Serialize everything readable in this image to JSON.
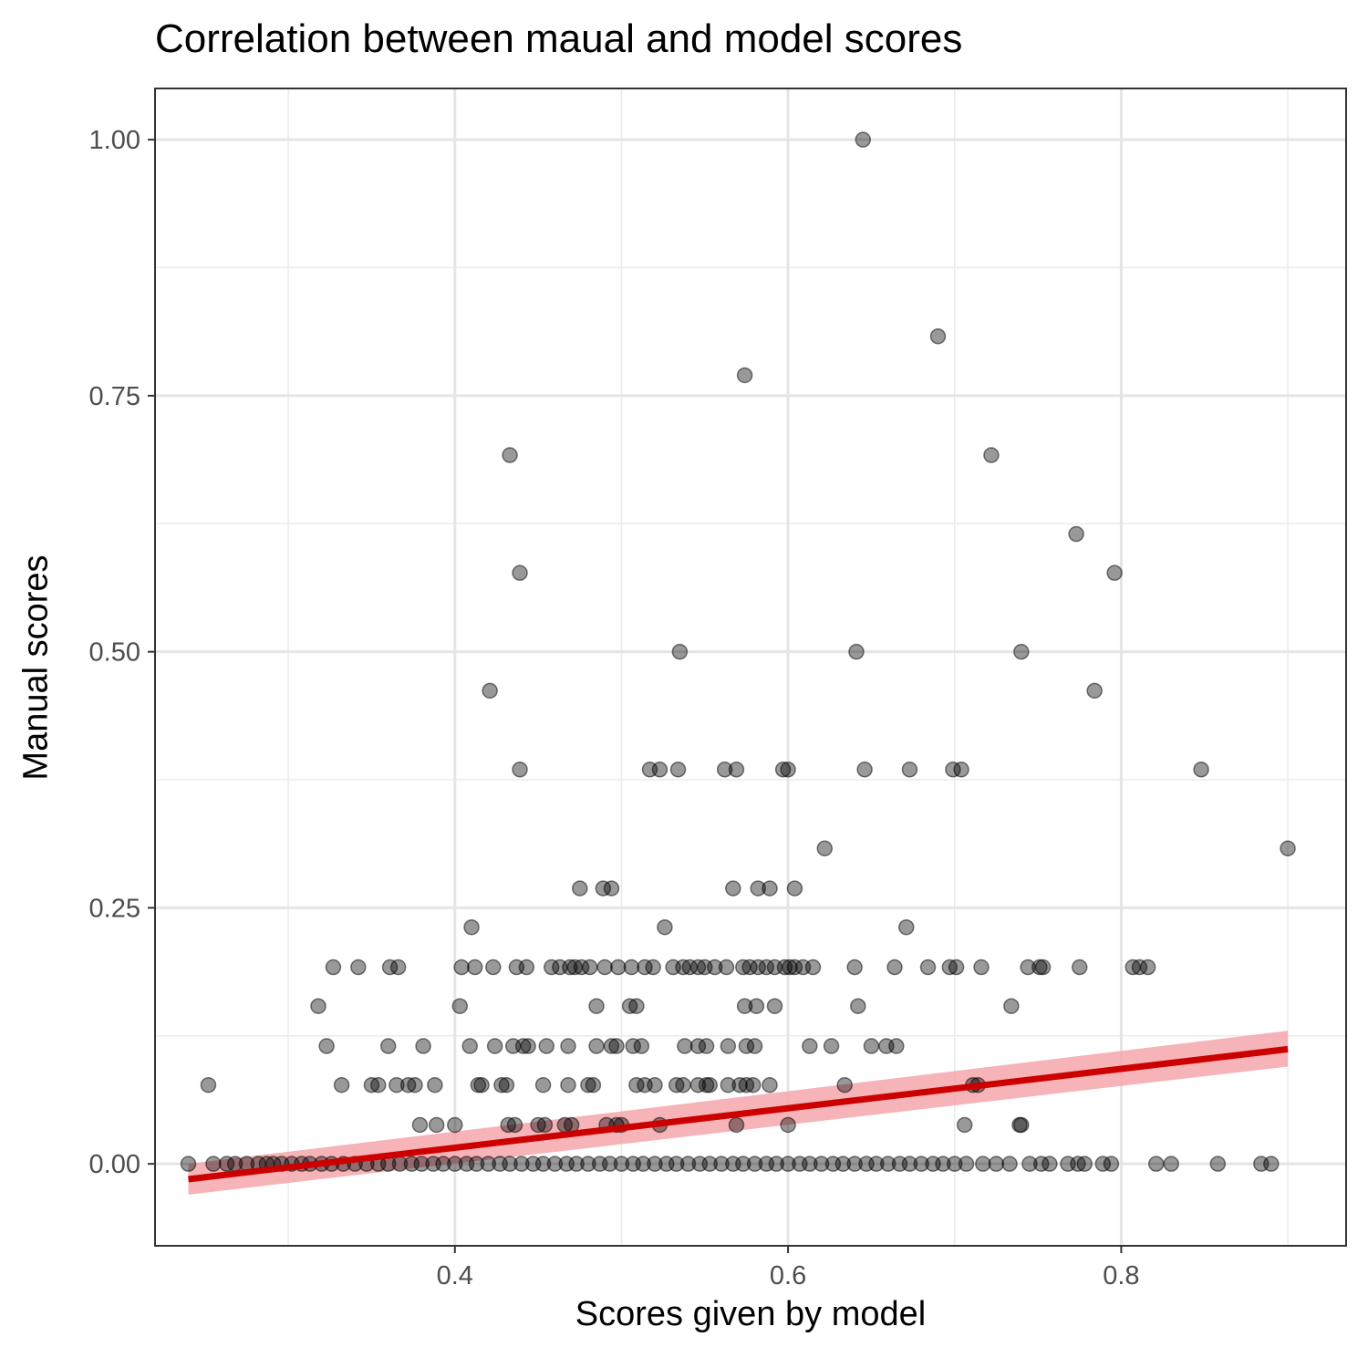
{
  "chart_data": {
    "type": "scatter",
    "title": "Correlation between maual and model scores",
    "xlabel": "Scores given by model",
    "ylabel": "Manual scores",
    "xlim": [
      0.22,
      0.935
    ],
    "ylim": [
      -0.08,
      1.05
    ],
    "x_ticks": [
      0.4,
      0.6,
      0.8
    ],
    "x_tick_labels": [
      "0.4",
      "0.6",
      "0.8"
    ],
    "y_ticks": [
      0,
      0.25,
      0.5,
      0.75,
      1.0
    ],
    "y_tick_labels": [
      "0.00",
      "0.25",
      "0.50",
      "0.75",
      "1.00"
    ],
    "grid": true,
    "point_color": "#000000",
    "point_alpha": 0.4,
    "fit_line": {
      "method": "linear",
      "x": [
        0.24,
        0.9
      ],
      "y": [
        -0.015,
        0.112
      ],
      "ci_lower": [
        -0.03,
        0.095
      ],
      "ci_upper": [
        0.0,
        0.13
      ],
      "color": "#cc0000",
      "ci_color": "#f4a6ab"
    },
    "series": [
      {
        "points": [
          [
            0.645,
            1.0
          ],
          [
            0.69,
            0.808
          ],
          [
            0.574,
            0.77
          ],
          [
            0.433,
            0.692
          ],
          [
            0.722,
            0.692
          ],
          [
            0.773,
            0.615
          ],
          [
            0.439,
            0.577
          ],
          [
            0.796,
            0.577
          ],
          [
            0.535,
            0.5
          ],
          [
            0.641,
            0.5
          ],
          [
            0.74,
            0.5
          ],
          [
            0.421,
            0.462
          ],
          [
            0.784,
            0.462
          ],
          [
            0.439,
            0.385
          ],
          [
            0.517,
            0.385
          ],
          [
            0.523,
            0.385
          ],
          [
            0.534,
            0.385
          ],
          [
            0.562,
            0.385
          ],
          [
            0.569,
            0.385
          ],
          [
            0.597,
            0.385
          ],
          [
            0.6,
            0.385
          ],
          [
            0.646,
            0.385
          ],
          [
            0.673,
            0.385
          ],
          [
            0.699,
            0.385
          ],
          [
            0.704,
            0.385
          ],
          [
            0.848,
            0.385
          ],
          [
            0.622,
            0.308
          ],
          [
            0.9,
            0.308
          ],
          [
            0.475,
            0.269
          ],
          [
            0.489,
            0.269
          ],
          [
            0.494,
            0.269
          ],
          [
            0.567,
            0.269
          ],
          [
            0.582,
            0.269
          ],
          [
            0.589,
            0.269
          ],
          [
            0.604,
            0.269
          ],
          [
            0.41,
            0.231
          ],
          [
            0.526,
            0.231
          ],
          [
            0.671,
            0.231
          ],
          [
            0.327,
            0.192
          ],
          [
            0.342,
            0.192
          ],
          [
            0.361,
            0.192
          ],
          [
            0.366,
            0.192
          ],
          [
            0.404,
            0.192
          ],
          [
            0.412,
            0.192
          ],
          [
            0.423,
            0.192
          ],
          [
            0.437,
            0.192
          ],
          [
            0.443,
            0.192
          ],
          [
            0.458,
            0.192
          ],
          [
            0.463,
            0.192
          ],
          [
            0.469,
            0.192
          ],
          [
            0.472,
            0.192
          ],
          [
            0.476,
            0.192
          ],
          [
            0.481,
            0.192
          ],
          [
            0.49,
            0.192
          ],
          [
            0.498,
            0.192
          ],
          [
            0.506,
            0.192
          ],
          [
            0.514,
            0.192
          ],
          [
            0.519,
            0.192
          ],
          [
            0.531,
            0.192
          ],
          [
            0.537,
            0.192
          ],
          [
            0.541,
            0.192
          ],
          [
            0.546,
            0.192
          ],
          [
            0.55,
            0.192
          ],
          [
            0.556,
            0.192
          ],
          [
            0.563,
            0.192
          ],
          [
            0.573,
            0.192
          ],
          [
            0.577,
            0.192
          ],
          [
            0.582,
            0.192
          ],
          [
            0.587,
            0.192
          ],
          [
            0.592,
            0.192
          ],
          [
            0.598,
            0.192
          ],
          [
            0.601,
            0.192
          ],
          [
            0.604,
            0.192
          ],
          [
            0.609,
            0.192
          ],
          [
            0.615,
            0.192
          ],
          [
            0.64,
            0.192
          ],
          [
            0.664,
            0.192
          ],
          [
            0.684,
            0.192
          ],
          [
            0.697,
            0.192
          ],
          [
            0.701,
            0.192
          ],
          [
            0.716,
            0.192
          ],
          [
            0.744,
            0.192
          ],
          [
            0.751,
            0.192
          ],
          [
            0.753,
            0.192
          ],
          [
            0.775,
            0.192
          ],
          [
            0.807,
            0.192
          ],
          [
            0.811,
            0.192
          ],
          [
            0.816,
            0.192
          ],
          [
            0.318,
            0.154
          ],
          [
            0.403,
            0.154
          ],
          [
            0.485,
            0.154
          ],
          [
            0.505,
            0.154
          ],
          [
            0.509,
            0.154
          ],
          [
            0.574,
            0.154
          ],
          [
            0.581,
            0.154
          ],
          [
            0.592,
            0.154
          ],
          [
            0.642,
            0.154
          ],
          [
            0.734,
            0.154
          ],
          [
            0.323,
            0.115
          ],
          [
            0.36,
            0.115
          ],
          [
            0.381,
            0.115
          ],
          [
            0.409,
            0.115
          ],
          [
            0.424,
            0.115
          ],
          [
            0.435,
            0.115
          ],
          [
            0.441,
            0.115
          ],
          [
            0.444,
            0.115
          ],
          [
            0.455,
            0.115
          ],
          [
            0.468,
            0.115
          ],
          [
            0.485,
            0.115
          ],
          [
            0.494,
            0.115
          ],
          [
            0.497,
            0.115
          ],
          [
            0.507,
            0.115
          ],
          [
            0.512,
            0.115
          ],
          [
            0.538,
            0.115
          ],
          [
            0.546,
            0.115
          ],
          [
            0.551,
            0.115
          ],
          [
            0.564,
            0.115
          ],
          [
            0.575,
            0.115
          ],
          [
            0.58,
            0.115
          ],
          [
            0.613,
            0.115
          ],
          [
            0.626,
            0.115
          ],
          [
            0.65,
            0.115
          ],
          [
            0.659,
            0.115
          ],
          [
            0.665,
            0.115
          ],
          [
            0.252,
            0.077
          ],
          [
            0.332,
            0.077
          ],
          [
            0.35,
            0.077
          ],
          [
            0.354,
            0.077
          ],
          [
            0.365,
            0.077
          ],
          [
            0.372,
            0.077
          ],
          [
            0.376,
            0.077
          ],
          [
            0.388,
            0.077
          ],
          [
            0.414,
            0.077
          ],
          [
            0.416,
            0.077
          ],
          [
            0.428,
            0.077
          ],
          [
            0.431,
            0.077
          ],
          [
            0.453,
            0.077
          ],
          [
            0.468,
            0.077
          ],
          [
            0.48,
            0.077
          ],
          [
            0.483,
            0.077
          ],
          [
            0.509,
            0.077
          ],
          [
            0.514,
            0.077
          ],
          [
            0.52,
            0.077
          ],
          [
            0.533,
            0.077
          ],
          [
            0.537,
            0.077
          ],
          [
            0.546,
            0.077
          ],
          [
            0.551,
            0.077
          ],
          [
            0.553,
            0.077
          ],
          [
            0.564,
            0.077
          ],
          [
            0.571,
            0.077
          ],
          [
            0.575,
            0.077
          ],
          [
            0.579,
            0.077
          ],
          [
            0.589,
            0.077
          ],
          [
            0.634,
            0.077
          ],
          [
            0.711,
            0.077
          ],
          [
            0.714,
            0.077
          ],
          [
            0.379,
            0.038
          ],
          [
            0.389,
            0.038
          ],
          [
            0.4,
            0.038
          ],
          [
            0.432,
            0.038
          ],
          [
            0.436,
            0.038
          ],
          [
            0.45,
            0.038
          ],
          [
            0.454,
            0.038
          ],
          [
            0.466,
            0.038
          ],
          [
            0.47,
            0.038
          ],
          [
            0.491,
            0.038
          ],
          [
            0.497,
            0.038
          ],
          [
            0.5,
            0.038
          ],
          [
            0.523,
            0.038
          ],
          [
            0.569,
            0.038
          ],
          [
            0.6,
            0.038
          ],
          [
            0.706,
            0.038
          ],
          [
            0.739,
            0.038
          ],
          [
            0.74,
            0.038
          ],
          [
            0.24,
            0.0
          ],
          [
            0.255,
            0.0
          ],
          [
            0.263,
            0.0
          ],
          [
            0.268,
            0.0
          ],
          [
            0.275,
            0.0
          ],
          [
            0.282,
            0.0
          ],
          [
            0.287,
            0.0
          ],
          [
            0.291,
            0.0
          ],
          [
            0.296,
            0.0
          ],
          [
            0.302,
            0.0
          ],
          [
            0.308,
            0.0
          ],
          [
            0.313,
            0.0
          ],
          [
            0.32,
            0.0
          ],
          [
            0.326,
            0.0
          ],
          [
            0.333,
            0.0
          ],
          [
            0.34,
            0.0
          ],
          [
            0.347,
            0.0
          ],
          [
            0.354,
            0.0
          ],
          [
            0.36,
            0.0
          ],
          [
            0.367,
            0.0
          ],
          [
            0.374,
            0.0
          ],
          [
            0.38,
            0.0
          ],
          [
            0.387,
            0.0
          ],
          [
            0.393,
            0.0
          ],
          [
            0.4,
            0.0
          ],
          [
            0.407,
            0.0
          ],
          [
            0.413,
            0.0
          ],
          [
            0.42,
            0.0
          ],
          [
            0.427,
            0.0
          ],
          [
            0.433,
            0.0
          ],
          [
            0.44,
            0.0
          ],
          [
            0.447,
            0.0
          ],
          [
            0.453,
            0.0
          ],
          [
            0.46,
            0.0
          ],
          [
            0.467,
            0.0
          ],
          [
            0.473,
            0.0
          ],
          [
            0.48,
            0.0
          ],
          [
            0.487,
            0.0
          ],
          [
            0.493,
            0.0
          ],
          [
            0.5,
            0.0
          ],
          [
            0.507,
            0.0
          ],
          [
            0.513,
            0.0
          ],
          [
            0.52,
            0.0
          ],
          [
            0.527,
            0.0
          ],
          [
            0.533,
            0.0
          ],
          [
            0.54,
            0.0
          ],
          [
            0.547,
            0.0
          ],
          [
            0.553,
            0.0
          ],
          [
            0.56,
            0.0
          ],
          [
            0.567,
            0.0
          ],
          [
            0.573,
            0.0
          ],
          [
            0.58,
            0.0
          ],
          [
            0.587,
            0.0
          ],
          [
            0.593,
            0.0
          ],
          [
            0.6,
            0.0
          ],
          [
            0.607,
            0.0
          ],
          [
            0.613,
            0.0
          ],
          [
            0.62,
            0.0
          ],
          [
            0.627,
            0.0
          ],
          [
            0.633,
            0.0
          ],
          [
            0.64,
            0.0
          ],
          [
            0.647,
            0.0
          ],
          [
            0.653,
            0.0
          ],
          [
            0.66,
            0.0
          ],
          [
            0.667,
            0.0
          ],
          [
            0.673,
            0.0
          ],
          [
            0.68,
            0.0
          ],
          [
            0.687,
            0.0
          ],
          [
            0.693,
            0.0
          ],
          [
            0.7,
            0.0
          ],
          [
            0.707,
            0.0
          ],
          [
            0.717,
            0.0
          ],
          [
            0.725,
            0.0
          ],
          [
            0.733,
            0.0
          ],
          [
            0.745,
            0.0
          ],
          [
            0.752,
            0.0
          ],
          [
            0.757,
            0.0
          ],
          [
            0.768,
            0.0
          ],
          [
            0.774,
            0.0
          ],
          [
            0.778,
            0.0
          ],
          [
            0.789,
            0.0
          ],
          [
            0.794,
            0.0
          ],
          [
            0.821,
            0.0
          ],
          [
            0.83,
            0.0
          ],
          [
            0.858,
            0.0
          ],
          [
            0.884,
            0.0
          ],
          [
            0.89,
            0.0
          ]
        ]
      }
    ]
  }
}
